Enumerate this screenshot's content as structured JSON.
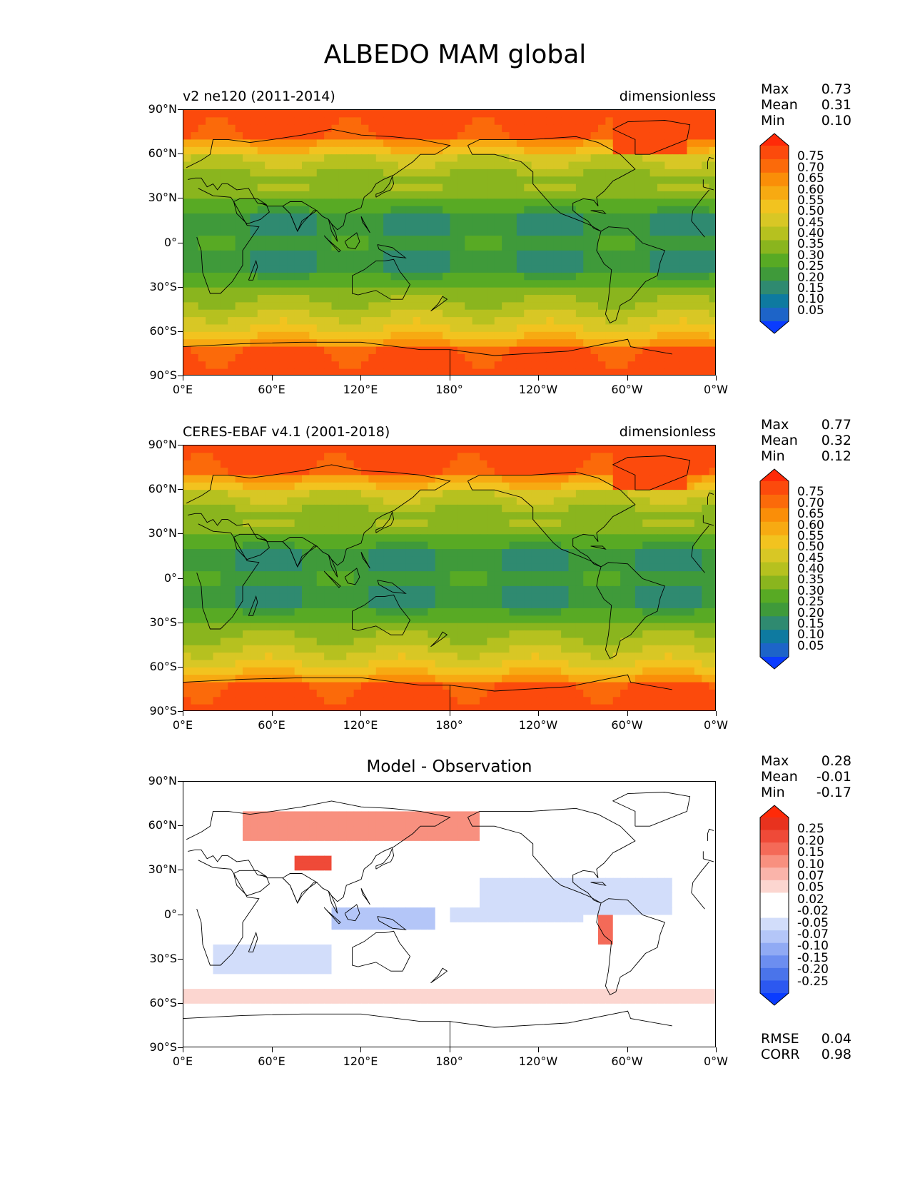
{
  "title": "ALBEDO MAM global",
  "axes": {
    "y_ticks": [
      "90°N",
      "60°N",
      "30°N",
      "0°",
      "30°S",
      "60°S",
      "90°S"
    ],
    "x_ticks": [
      "0°E",
      "60°E",
      "120°E",
      "180°",
      "120°W",
      "60°W",
      "0°W"
    ]
  },
  "colors": {
    "field_scale": [
      "#0a3cff",
      "#1d64c8",
      "#0e7aa0",
      "#2f8a70",
      "#3f9a3a",
      "#58aa24",
      "#8ab51e",
      "#b6c11f",
      "#d8c725",
      "#f2c31f",
      "#f7aa12",
      "#fa8e08",
      "#fb6a0a",
      "#fc4a0c",
      "#ff2a08"
    ],
    "diff_scale": [
      "#0a3cff",
      "#2c58f0",
      "#4a74ea",
      "#6c8ef0",
      "#90aaf4",
      "#b4c6f8",
      "#d2ddfa",
      "#ffffff",
      "#ffffff",
      "#fcd6d0",
      "#fab4aa",
      "#f8907f",
      "#f46a58",
      "#ef4a38",
      "#e8321e",
      "#ff2a08"
    ],
    "coastline": "#000000"
  },
  "chart_data": [
    {
      "type": "heatmap",
      "title": "v2 ne120 (2011-2014)",
      "units": "dimensionless",
      "stats": {
        "max_label": "Max",
        "max": "0.73",
        "mean_label": "Mean",
        "mean": "0.31",
        "min_label": "Min",
        "min": "0.10"
      },
      "colorbar_levels": [
        "0.75",
        "0.70",
        "0.65",
        "0.60",
        "0.55",
        "0.50",
        "0.45",
        "0.40",
        "0.35",
        "0.30",
        "0.25",
        "0.20",
        "0.15",
        "0.10",
        "0.05"
      ],
      "x_range": [
        0,
        360
      ],
      "y_range": [
        -90,
        90
      ]
    },
    {
      "type": "heatmap",
      "title": "CERES-EBAF v4.1 (2001-2018)",
      "units": "dimensionless",
      "stats": {
        "max_label": "Max",
        "max": "0.77",
        "mean_label": "Mean",
        "mean": "0.32",
        "min_label": "Min",
        "min": "0.12"
      },
      "colorbar_levels": [
        "0.75",
        "0.70",
        "0.65",
        "0.60",
        "0.55",
        "0.50",
        "0.45",
        "0.40",
        "0.35",
        "0.30",
        "0.25",
        "0.20",
        "0.15",
        "0.10",
        "0.05"
      ],
      "x_range": [
        0,
        360
      ],
      "y_range": [
        -90,
        90
      ]
    },
    {
      "type": "heatmap",
      "title": "Model - Observation",
      "units": "",
      "stats": {
        "max_label": "Max",
        "max": "0.28",
        "mean_label": "Mean",
        "mean": "-0.01",
        "min_label": "Min",
        "min": "-0.17"
      },
      "colorbar_levels": [
        "0.25",
        "0.20",
        "0.15",
        "0.10",
        "0.07",
        "0.05",
        "0.02",
        "-0.02",
        "-0.05",
        "-0.07",
        "-0.10",
        "-0.15",
        "-0.20",
        "-0.25"
      ],
      "metrics": {
        "rmse_label": "RMSE",
        "rmse": "0.04",
        "corr_label": "CORR",
        "corr": "0.98"
      },
      "x_range": [
        0,
        360
      ],
      "y_range": [
        -90,
        90
      ]
    }
  ]
}
